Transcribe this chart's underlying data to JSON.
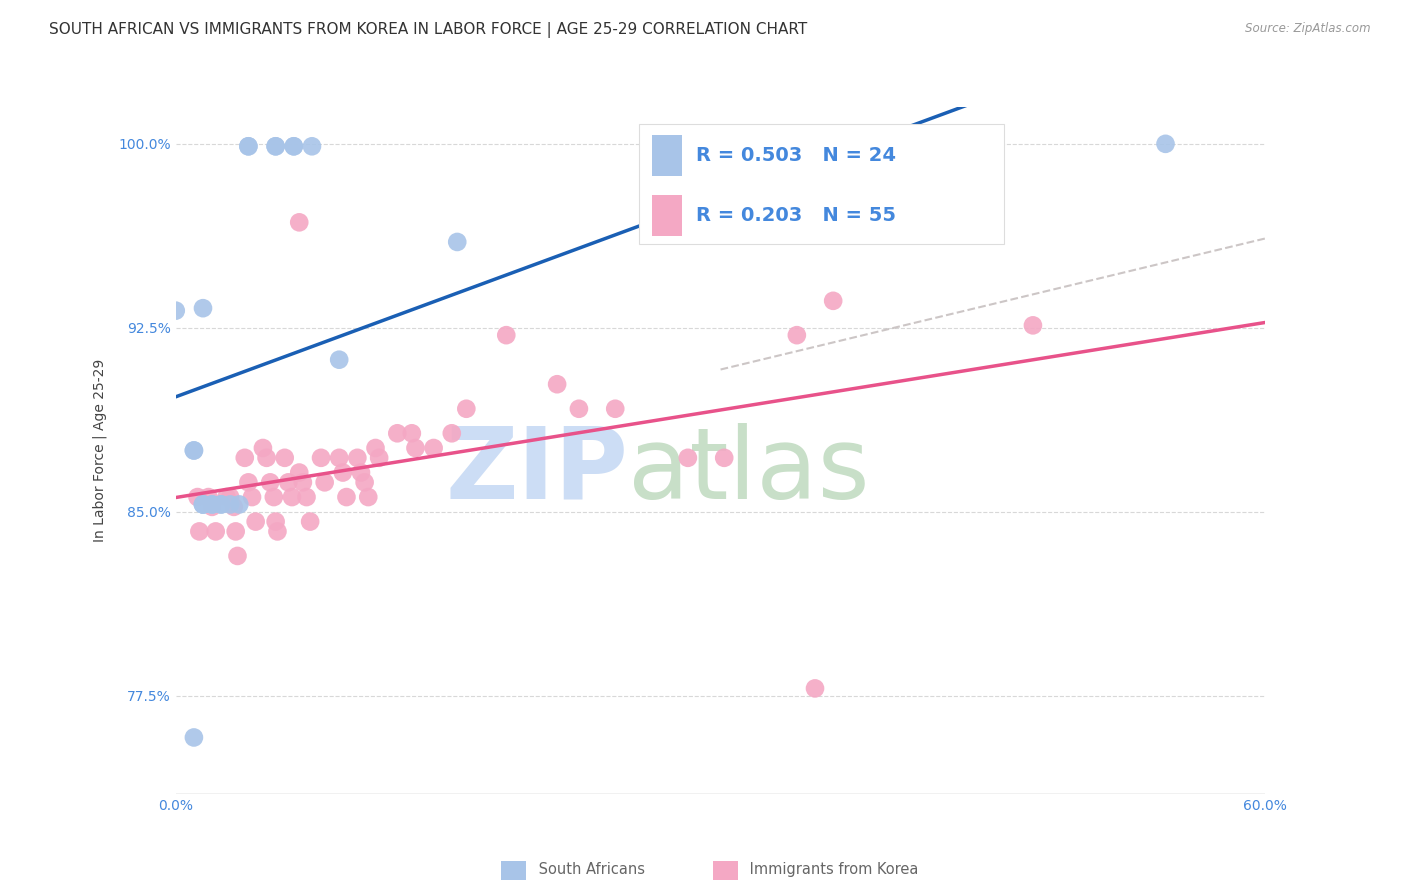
{
  "title": "SOUTH AFRICAN VS IMMIGRANTS FROM KOREA IN LABOR FORCE | AGE 25-29 CORRELATION CHART",
  "source": "Source: ZipAtlas.com",
  "ylabel": "In Labor Force | Age 25-29",
  "xlim": [
    0.0,
    0.6
  ],
  "ylim": [
    0.735,
    1.015
  ],
  "xticks": [
    0.0,
    0.1,
    0.2,
    0.3,
    0.4,
    0.5,
    0.6
  ],
  "xticklabels": [
    "0.0%",
    "",
    "",
    "",
    "",
    "",
    "60.0%"
  ],
  "yticks": [
    0.775,
    0.85,
    0.925,
    1.0
  ],
  "yticklabels": [
    "77.5%",
    "85.0%",
    "92.5%",
    "100.0%"
  ],
  "color_sa": "#a8c4e8",
  "color_korea": "#f4a8c4",
  "line_color_sa": "#1a5fb4",
  "line_color_korea": "#e8528a",
  "line_color_gray": "#c0b8b8",
  "sa_x": [
    0.015,
    0.04,
    0.04,
    0.055,
    0.055,
    0.065,
    0.065,
    0.075,
    0.0,
    0.01,
    0.01,
    0.015,
    0.015,
    0.015,
    0.02,
    0.02,
    0.025,
    0.025,
    0.03,
    0.035,
    0.09,
    0.155,
    0.545,
    0.01
  ],
  "sa_y": [
    0.933,
    0.999,
    0.999,
    0.999,
    0.999,
    0.999,
    0.999,
    0.999,
    0.932,
    0.875,
    0.875,
    0.853,
    0.853,
    0.853,
    0.853,
    0.853,
    0.853,
    0.853,
    0.853,
    0.853,
    0.912,
    0.96,
    1.0,
    0.758
  ],
  "k_x": [
    0.068,
    0.012,
    0.013,
    0.018,
    0.02,
    0.022,
    0.028,
    0.03,
    0.032,
    0.033,
    0.034,
    0.038,
    0.04,
    0.042,
    0.044,
    0.048,
    0.05,
    0.052,
    0.054,
    0.055,
    0.056,
    0.06,
    0.062,
    0.064,
    0.068,
    0.07,
    0.072,
    0.074,
    0.08,
    0.082,
    0.09,
    0.092,
    0.094,
    0.1,
    0.102,
    0.104,
    0.106,
    0.11,
    0.112,
    0.122,
    0.13,
    0.132,
    0.142,
    0.152,
    0.16,
    0.182,
    0.21,
    0.222,
    0.242,
    0.282,
    0.302,
    0.342,
    0.362,
    0.472,
    0.352
  ],
  "k_y": [
    0.968,
    0.856,
    0.842,
    0.856,
    0.852,
    0.842,
    0.856,
    0.856,
    0.852,
    0.842,
    0.832,
    0.872,
    0.862,
    0.856,
    0.846,
    0.876,
    0.872,
    0.862,
    0.856,
    0.846,
    0.842,
    0.872,
    0.862,
    0.856,
    0.866,
    0.862,
    0.856,
    0.846,
    0.872,
    0.862,
    0.872,
    0.866,
    0.856,
    0.872,
    0.866,
    0.862,
    0.856,
    0.876,
    0.872,
    0.882,
    0.882,
    0.876,
    0.876,
    0.882,
    0.892,
    0.922,
    0.902,
    0.892,
    0.892,
    0.872,
    0.872,
    0.922,
    0.936,
    0.926,
    0.778
  ],
  "background_color": "#ffffff",
  "grid_color": "#d8d8d8",
  "title_fontsize": 11,
  "axis_label_fontsize": 10,
  "tick_fontsize": 10,
  "legend_fontsize": 14,
  "tick_color": "#4488dd",
  "watermark_zip_color": "#ccddf5",
  "watermark_atlas_color": "#c8dfc8"
}
